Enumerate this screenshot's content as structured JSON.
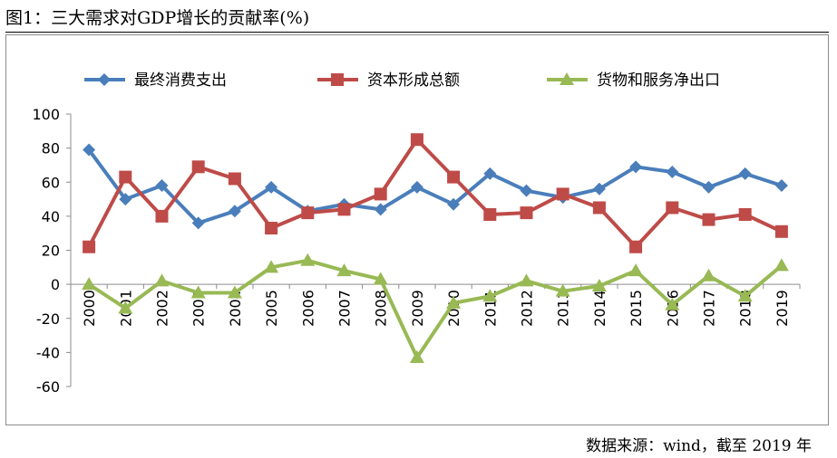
{
  "figure": {
    "title": "图1：三大需求对GDP增长的贡献率(%)",
    "source": "数据来源：wind，截至 2019 年"
  },
  "chart_data": {
    "type": "line",
    "title": "三大需求对GDP增长的贡献率(%)",
    "xlabel": "",
    "ylabel": "",
    "ylim": [
      -60,
      100
    ],
    "yticks": [
      100,
      80,
      60,
      40,
      20,
      0,
      -20,
      -40,
      -60
    ],
    "ytick_labels": [
      "100",
      "80",
      "60",
      "40",
      "20",
      "0",
      "-20",
      "-40",
      "-60"
    ],
    "grid": false,
    "legend_position": "top",
    "categories": [
      "2000",
      "2001",
      "2002",
      "2003",
      "2004",
      "2005",
      "2006",
      "2007",
      "2008",
      "2009",
      "2010",
      "2011",
      "2012",
      "2013",
      "2014",
      "2015",
      "2016",
      "2017",
      "2018",
      "2019"
    ],
    "series": [
      {
        "name": "最终消费支出",
        "color": "#4a7ebb",
        "marker": "diamond",
        "values": [
          79,
          50,
          58,
          36,
          43,
          57,
          43,
          47,
          44,
          57,
          47,
          65,
          55,
          51,
          56,
          69,
          66,
          57,
          65,
          58
        ]
      },
      {
        "name": "资本形成总额",
        "color": "#be4b48",
        "marker": "square",
        "values": [
          22,
          63,
          40,
          69,
          62,
          33,
          42,
          44,
          53,
          85,
          63,
          41,
          42,
          53,
          45,
          22,
          45,
          38,
          41,
          31
        ]
      },
      {
        "name": "货物和服务净出口",
        "color": "#98b954",
        "marker": "triangle",
        "values": [
          0,
          -14,
          2,
          -5,
          -5,
          10,
          14,
          8,
          3,
          -43,
          -11,
          -7,
          2,
          -4,
          -1,
          8,
          -12,
          5,
          -7,
          11
        ]
      }
    ]
  }
}
